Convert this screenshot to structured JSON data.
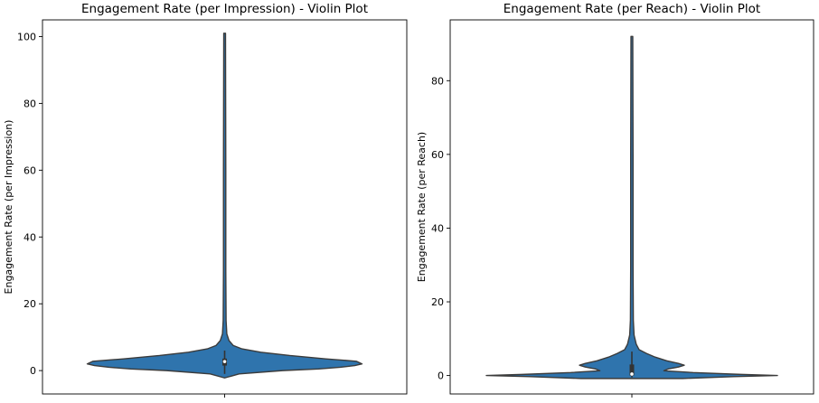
{
  "chart_data": [
    {
      "type": "violin",
      "title": "Engagement Rate (per Impression) - Violin Plot",
      "xlabel": "",
      "ylabel": "Engagement Rate (per Impression)",
      "ylim": [
        -7,
        105
      ],
      "yticks": [
        0,
        20,
        40,
        60,
        80,
        100
      ],
      "grid": false,
      "distribution": {
        "min": -2.2,
        "max": 101,
        "q1": 1.5,
        "median": 2.7,
        "q3": 3.6,
        "whisker_low": -1.0,
        "whisker_high": 6.0
      },
      "density_profile": [
        {
          "y": -2.2,
          "halfwidth": 0.0
        },
        {
          "y": -1.0,
          "halfwidth": 0.1
        },
        {
          "y": 0.0,
          "halfwidth": 0.4
        },
        {
          "y": 0.5,
          "halfwidth": 0.65
        },
        {
          "y": 1.0,
          "halfwidth": 0.8
        },
        {
          "y": 1.5,
          "halfwidth": 0.9
        },
        {
          "y": 2.0,
          "halfwidth": 0.95
        },
        {
          "y": 2.8,
          "halfwidth": 0.91
        },
        {
          "y": 3.5,
          "halfwidth": 0.7
        },
        {
          "y": 4.5,
          "halfwidth": 0.45
        },
        {
          "y": 5.5,
          "halfwidth": 0.25
        },
        {
          "y": 6.5,
          "halfwidth": 0.12
        },
        {
          "y": 7.5,
          "halfwidth": 0.06
        },
        {
          "y": 9.0,
          "halfwidth": 0.03
        },
        {
          "y": 11.0,
          "halfwidth": 0.015
        },
        {
          "y": 15.0,
          "halfwidth": 0.01
        },
        {
          "y": 30.0,
          "halfwidth": 0.008
        },
        {
          "y": 60.0,
          "halfwidth": 0.008
        },
        {
          "y": 101.0,
          "halfwidth": 0.006
        }
      ]
    },
    {
      "type": "violin",
      "title": "Engagement Rate (per Reach) - Violin Plot",
      "xlabel": "",
      "ylabel": "Engagement Rate (per Reach)",
      "ylim": [
        -5,
        96.5
      ],
      "yticks": [
        0,
        20,
        40,
        60,
        80
      ],
      "grid": false,
      "distribution": {
        "min": -0.8,
        "max": 92,
        "q1": 0.0,
        "median": 0.4,
        "q3": 3.0,
        "whisker_low": -0.5,
        "whisker_high": 6.5
      },
      "density_profile": [
        {
          "y": -0.8,
          "halfwidth": 0.35
        },
        {
          "y": -0.3,
          "halfwidth": 0.7
        },
        {
          "y": 0.0,
          "halfwidth": 1.0
        },
        {
          "y": 0.3,
          "halfwidth": 0.75
        },
        {
          "y": 0.8,
          "halfwidth": 0.42
        },
        {
          "y": 1.3,
          "halfwidth": 0.22
        },
        {
          "y": 1.8,
          "halfwidth": 0.25
        },
        {
          "y": 2.3,
          "halfwidth": 0.32
        },
        {
          "y": 2.8,
          "halfwidth": 0.36
        },
        {
          "y": 3.3,
          "halfwidth": 0.32
        },
        {
          "y": 4.0,
          "halfwidth": 0.24
        },
        {
          "y": 5.0,
          "halfwidth": 0.16
        },
        {
          "y": 6.0,
          "halfwidth": 0.1
        },
        {
          "y": 7.0,
          "halfwidth": 0.05
        },
        {
          "y": 8.5,
          "halfwidth": 0.03
        },
        {
          "y": 11.0,
          "halfwidth": 0.015
        },
        {
          "y": 15.0,
          "halfwidth": 0.01
        },
        {
          "y": 30.0,
          "halfwidth": 0.008
        },
        {
          "y": 60.0,
          "halfwidth": 0.008
        },
        {
          "y": 92.0,
          "halfwidth": 0.006
        }
      ]
    }
  ]
}
